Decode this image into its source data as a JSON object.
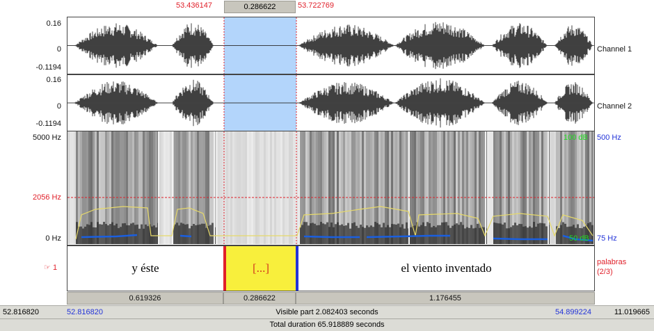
{
  "selection": {
    "start": "53.436147",
    "duration": "0.286622",
    "end": "53.722769"
  },
  "waveform": {
    "channel1": {
      "max": "0.16",
      "zero": "0",
      "min": "-0.1194",
      "name": "Channel 1"
    },
    "channel2": {
      "max": "0.16",
      "zero": "0",
      "min": "-0.1194",
      "name": "Channel 2"
    }
  },
  "spectrogram": {
    "freq_top": "5000 Hz",
    "freq_cursor": "2056 Hz",
    "freq_bottom": "0 Hz",
    "intensity_top": "100 dB",
    "intensity_bottom": "50 dB",
    "pitch_top": "500 Hz",
    "pitch_bottom": "75 Hz"
  },
  "tier": {
    "number": "1",
    "name": "palabras",
    "count": "(2/3)",
    "intervals": [
      "y éste",
      "[...]",
      "el viento inventado"
    ]
  },
  "durations": [
    "0.619326",
    "0.286622",
    "1.176455"
  ],
  "visible": {
    "left_total": "52.816820",
    "start": "52.816820",
    "label": "Visible part 2.082403 seconds",
    "end": "54.899224",
    "right_total": "11.019665"
  },
  "total": {
    "label": "Total duration 65.918889 seconds"
  },
  "colors": {
    "selection_fill": "#b3d5fb",
    "interval_selected": "#f8ef3c",
    "cursor": "#e0202a",
    "pitch": "#1a5fe0",
    "intensity": "#e6d96a"
  }
}
